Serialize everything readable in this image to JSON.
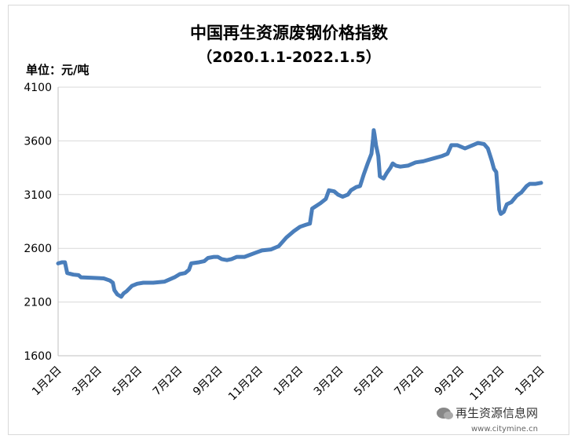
{
  "chart_data": {
    "type": "line",
    "title": "中国再生资源废钢价格指数",
    "subtitle": "（2020.1.1-2022.1.5）",
    "ylabel": "单位：元/吨",
    "ylim": [
      1600,
      4100
    ],
    "yticks": [
      1600,
      2100,
      2600,
      3100,
      3600,
      4100
    ],
    "xtick_labels": [
      "1月2日",
      "3月2日",
      "5月2日",
      "7月2日",
      "9月2日",
      "11月2日",
      "1月2日",
      "3月2日",
      "5月2日",
      "7月2日",
      "9月2日",
      "11月2日",
      "1月2日"
    ],
    "grid": true,
    "line_color": "#4a7ebb",
    "series": [
      {
        "values": [
          [
            0,
            2460
          ],
          [
            5,
            2470
          ],
          [
            9,
            2470
          ],
          [
            12,
            2370
          ],
          [
            20,
            2355
          ],
          [
            27,
            2350
          ],
          [
            30,
            2330
          ],
          [
            45,
            2325
          ],
          [
            60,
            2320
          ],
          [
            68,
            2300
          ],
          [
            72,
            2280
          ],
          [
            74,
            2210
          ],
          [
            78,
            2170
          ],
          [
            83,
            2150
          ],
          [
            86,
            2180
          ],
          [
            90,
            2200
          ],
          [
            97,
            2250
          ],
          [
            104,
            2270
          ],
          [
            112,
            2280
          ],
          [
            125,
            2280
          ],
          [
            140,
            2290
          ],
          [
            153,
            2330
          ],
          [
            160,
            2360
          ],
          [
            167,
            2370
          ],
          [
            172,
            2400
          ],
          [
            175,
            2460
          ],
          [
            185,
            2470
          ],
          [
            192,
            2480
          ],
          [
            197,
            2510
          ],
          [
            205,
            2520
          ],
          [
            210,
            2520
          ],
          [
            215,
            2500
          ],
          [
            222,
            2490
          ],
          [
            228,
            2500
          ],
          [
            235,
            2520
          ],
          [
            245,
            2520
          ],
          [
            260,
            2560
          ],
          [
            268,
            2580
          ],
          [
            280,
            2590
          ],
          [
            290,
            2620
          ],
          [
            300,
            2700
          ],
          [
            310,
            2760
          ],
          [
            318,
            2800
          ],
          [
            326,
            2820
          ],
          [
            331,
            2830
          ],
          [
            334,
            2970
          ],
          [
            345,
            3020
          ],
          [
            352,
            3060
          ],
          [
            356,
            3140
          ],
          [
            363,
            3130
          ],
          [
            368,
            3100
          ],
          [
            374,
            3080
          ],
          [
            381,
            3100
          ],
          [
            385,
            3140
          ],
          [
            392,
            3170
          ],
          [
            397,
            3180
          ],
          [
            402,
            3290
          ],
          [
            407,
            3390
          ],
          [
            412,
            3480
          ],
          [
            414,
            3620
          ],
          [
            415,
            3700
          ],
          [
            416,
            3660
          ],
          [
            418,
            3560
          ],
          [
            421,
            3460
          ],
          [
            423,
            3270
          ],
          [
            428,
            3250
          ],
          [
            432,
            3300
          ],
          [
            437,
            3350
          ],
          [
            440,
            3390
          ],
          [
            444,
            3370
          ],
          [
            450,
            3360
          ],
          [
            460,
            3370
          ],
          [
            470,
            3400
          ],
          [
            480,
            3410
          ],
          [
            495,
            3440
          ],
          [
            505,
            3460
          ],
          [
            512,
            3480
          ],
          [
            517,
            3560
          ],
          [
            525,
            3560
          ],
          [
            535,
            3530
          ],
          [
            545,
            3560
          ],
          [
            552,
            3580
          ],
          [
            560,
            3570
          ],
          [
            565,
            3530
          ],
          [
            570,
            3420
          ],
          [
            573,
            3340
          ],
          [
            576,
            3310
          ],
          [
            578,
            3140
          ],
          [
            580,
            2960
          ],
          [
            582,
            2920
          ],
          [
            586,
            2940
          ],
          [
            590,
            3010
          ],
          [
            596,
            3030
          ],
          [
            603,
            3090
          ],
          [
            609,
            3120
          ],
          [
            616,
            3180
          ],
          [
            620,
            3200
          ],
          [
            628,
            3200
          ],
          [
            635,
            3210
          ]
        ]
      }
    ]
  },
  "watermark": {
    "text": "再生资源信息网",
    "url": "www.citymine.cn"
  }
}
